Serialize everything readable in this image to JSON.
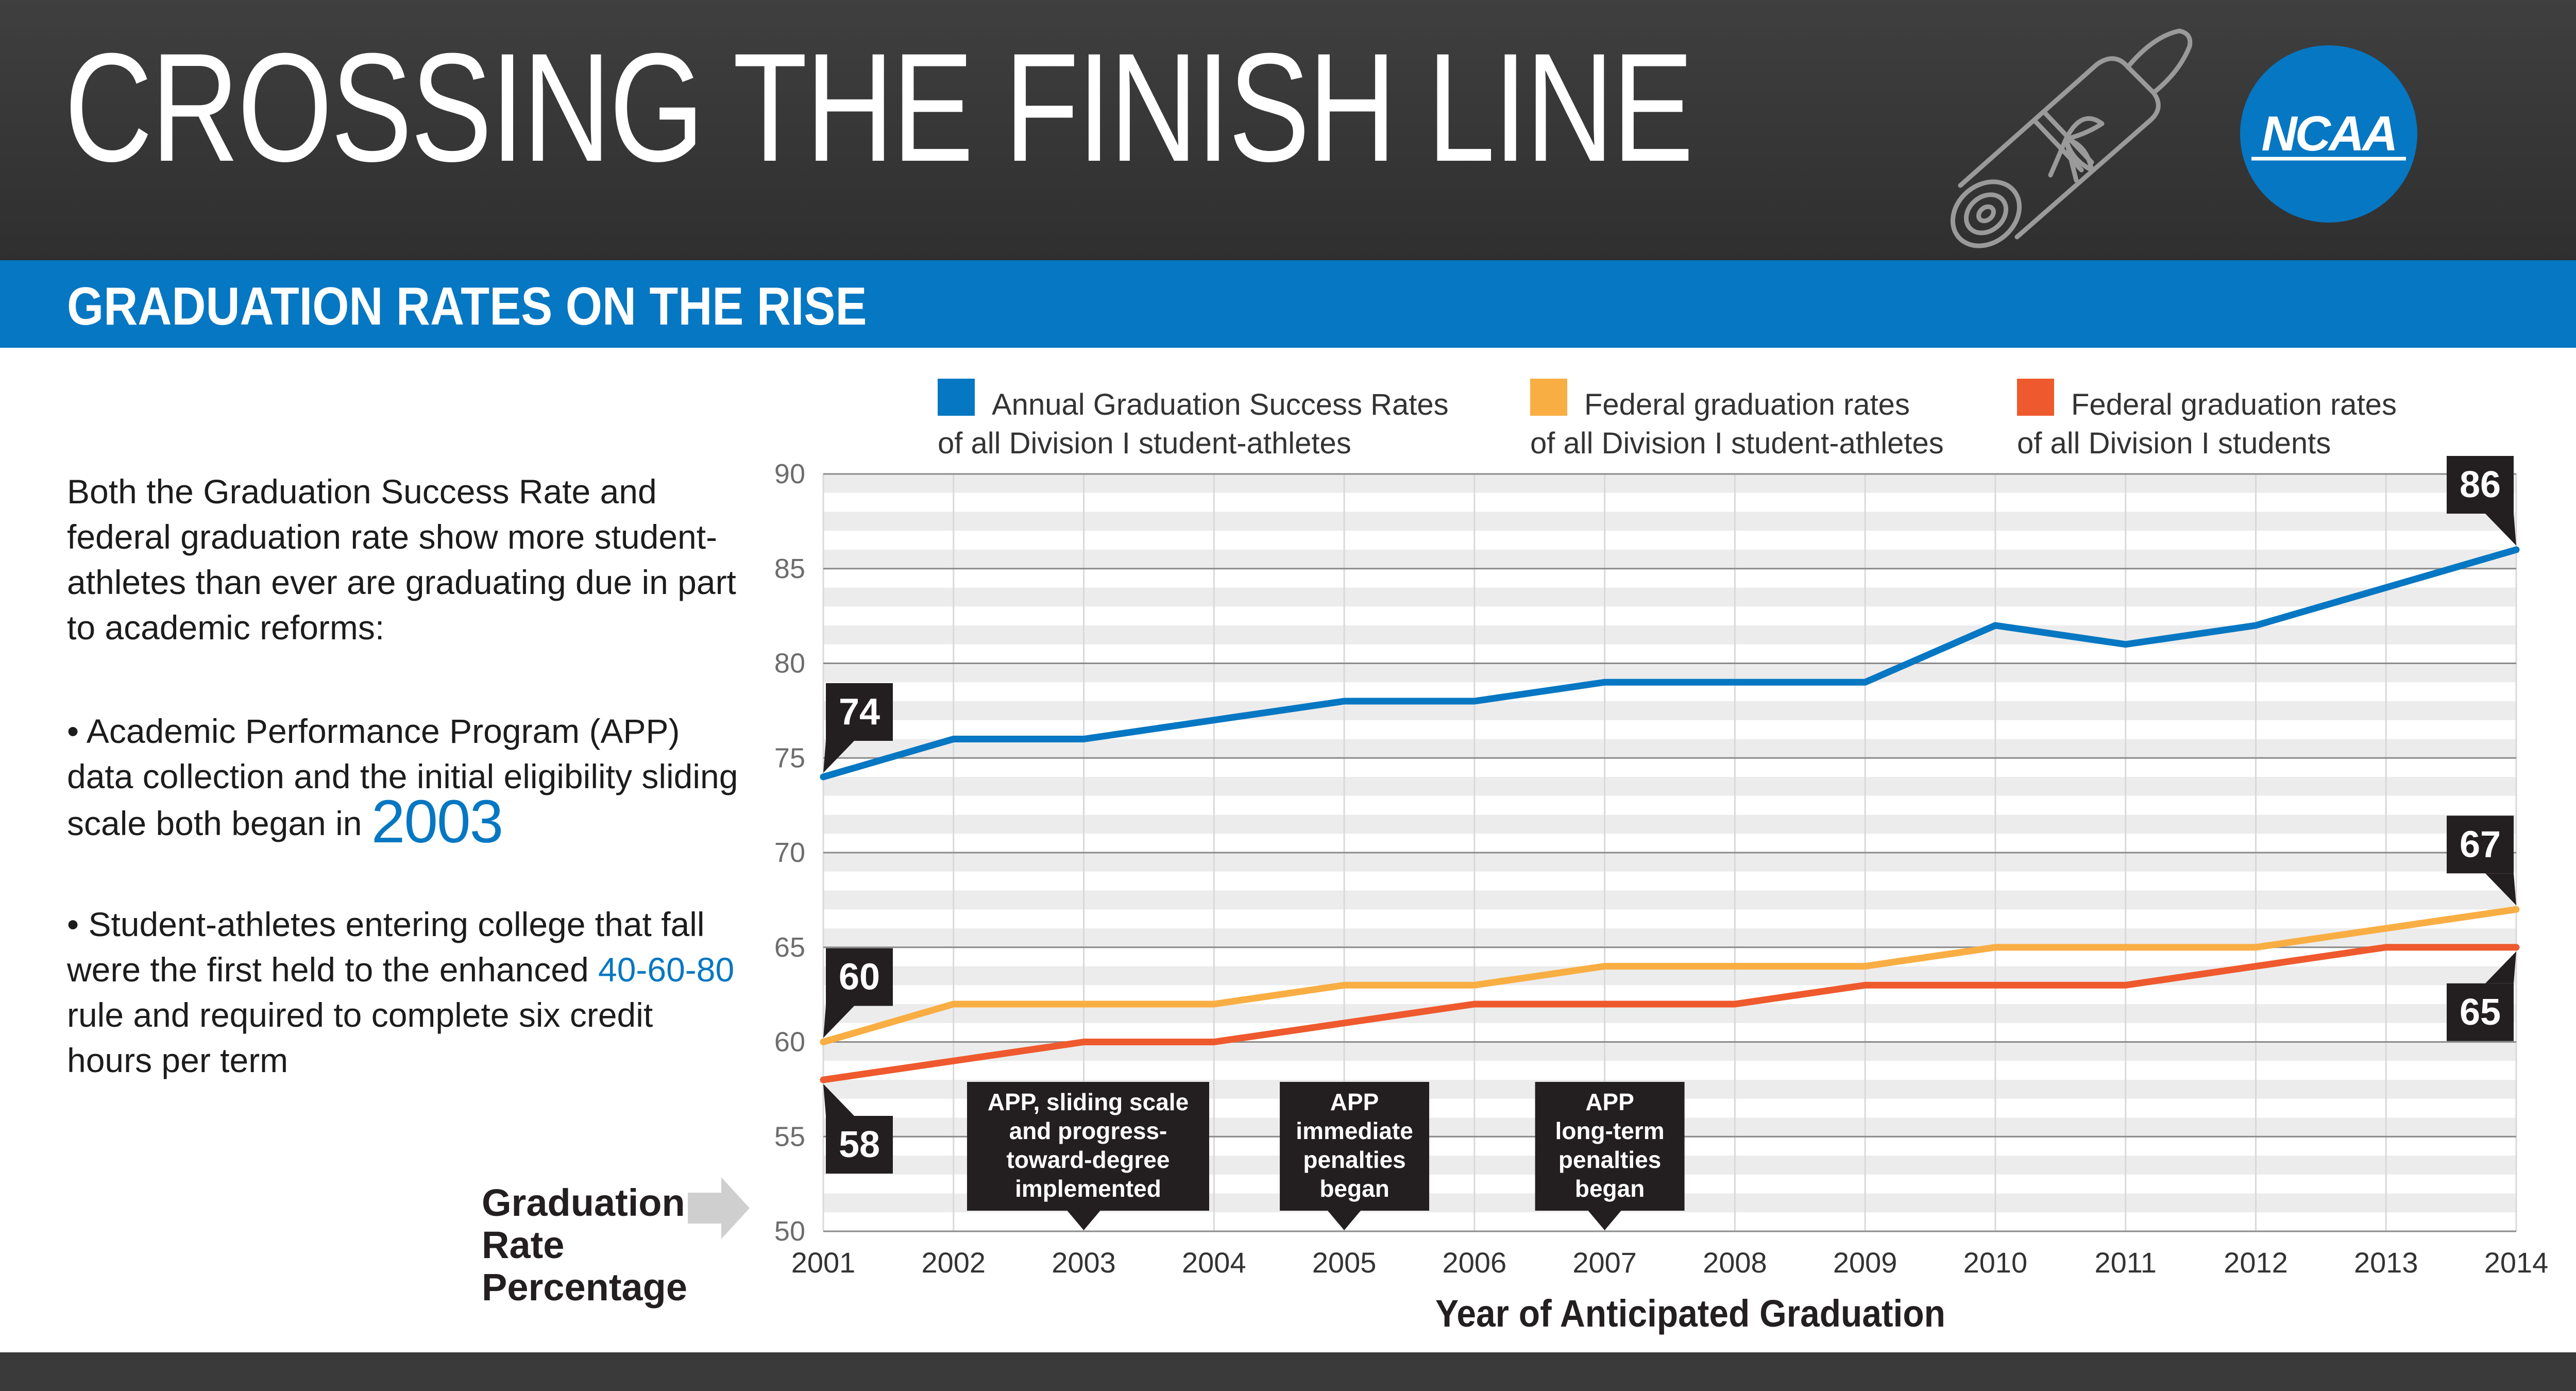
{
  "header": {
    "title": "CROSSING THE FINISH LINE",
    "logo_text": "NCAA",
    "subtitle": "GRADUATION RATES ON THE RISE"
  },
  "panel": {
    "intro": "Both the Graduation Success Rate and federal graduation rate show more student-athletes than ever are graduating due in part to academic reforms:",
    "bullet1_text": "• Academic Performance Program (APP) data collection and the initial eligibility sliding scale both began in",
    "bullet1_highlight": "2003",
    "bullet2_before": "• Student-athletes entering college that fall were the first held to the enhanced",
    "bullet2_highlight": "40-60-80",
    "bullet2_after": "rule and required to complete six credit hours per term"
  },
  "colors": {
    "blue": "#0677c2",
    "orange": "#f9ae43",
    "red": "#ee5a2d",
    "dark": "#231f20",
    "header_bg": "#363637"
  },
  "chart_data": {
    "type": "line",
    "xlabel": "Year of Anticipated Graduation",
    "ylabel": "Graduation Rate Percentage",
    "x": [
      2001,
      2002,
      2003,
      2004,
      2005,
      2006,
      2007,
      2008,
      2009,
      2010,
      2011,
      2012,
      2013,
      2014
    ],
    "xticks": [
      "2001",
      "2002",
      "2003",
      "2004",
      "2005",
      "2006",
      "2007",
      "2008",
      "2009",
      "2010",
      "2011",
      "2012",
      "2013",
      "2014"
    ],
    "yticks": [
      "50",
      "55",
      "60",
      "65",
      "70",
      "75",
      "80",
      "85",
      "90"
    ],
    "ylim": [
      50,
      90
    ],
    "grid": true,
    "legend_position": "top",
    "series": [
      {
        "name": "Annual Graduation Success Rates of all Division I student-athletes",
        "legend_line1": "Annual Graduation Success Rates",
        "legend_line2": "of all Division I student-athletes",
        "color": "#0677c2",
        "values": [
          74,
          76,
          76,
          77,
          78,
          78,
          79,
          79,
          79,
          82,
          81,
          82,
          84,
          86
        ]
      },
      {
        "name": "Federal graduation rates of all Division I student-athletes",
        "legend_line1": "Federal graduation rates",
        "legend_line2": "of all Division I student-athletes",
        "color": "#f9ae43",
        "values": [
          60,
          62,
          62,
          62,
          63,
          63,
          64,
          64,
          64,
          65,
          65,
          65,
          66,
          67
        ]
      },
      {
        "name": "Federal graduation rates of all Division I students",
        "legend_line1": "Federal graduation rates",
        "legend_line2": "of all Division I students",
        "color": "#ee5a2d",
        "values": [
          58,
          59,
          60,
          60,
          61,
          62,
          62,
          62,
          63,
          63,
          63,
          64,
          65,
          65
        ]
      }
    ],
    "value_callouts": [
      {
        "text": "74",
        "year": 2001,
        "value": 74,
        "side": "above"
      },
      {
        "text": "86",
        "year": 2014,
        "value": 86,
        "side": "above"
      },
      {
        "text": "60",
        "year": 2001,
        "value": 60,
        "side": "above"
      },
      {
        "text": "67",
        "year": 2014,
        "value": 67,
        "side": "above"
      },
      {
        "text": "58",
        "year": 2001,
        "value": 58,
        "side": "below"
      },
      {
        "text": "65",
        "year": 2014,
        "value": 65,
        "side": "below"
      }
    ],
    "annotations": [
      {
        "year": 2003,
        "lines": [
          "APP, sliding scale",
          "and progress-",
          "toward-degree",
          "implemented"
        ]
      },
      {
        "year": 2005,
        "lines": [
          "APP",
          "immediate",
          "penalties",
          "began"
        ]
      },
      {
        "year": 2007,
        "lines": [
          "APP",
          "long-term",
          "penalties",
          "began"
        ]
      }
    ]
  }
}
